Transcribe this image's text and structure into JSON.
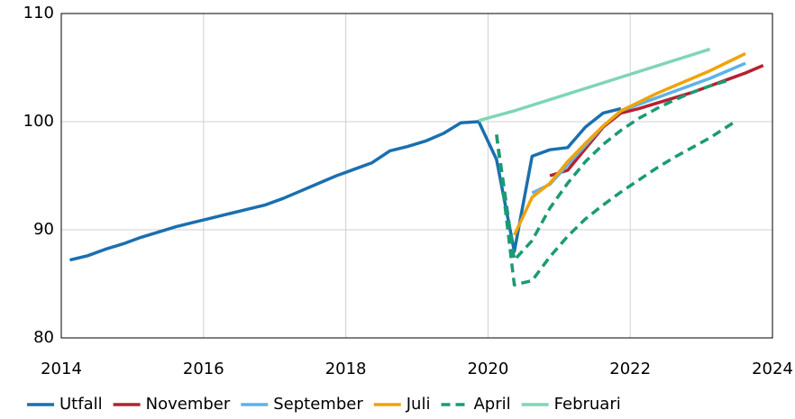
{
  "chart_data": {
    "type": "line",
    "xlim": [
      2014,
      2024
    ],
    "xticks": [
      2014,
      2016,
      2018,
      2020,
      2022,
      2024
    ],
    "ylim": [
      80,
      110
    ],
    "yticks": [
      80,
      90,
      100,
      110
    ],
    "grid": true,
    "legend": "bottom",
    "series": [
      {
        "name": "Utfall",
        "color": "#1a6faf",
        "x": [
          2014.12,
          2014.37,
          2014.62,
          2014.87,
          2015.12,
          2015.37,
          2015.62,
          2015.87,
          2016.12,
          2016.37,
          2016.62,
          2016.87,
          2017.12,
          2017.37,
          2017.62,
          2017.87,
          2018.12,
          2018.37,
          2018.62,
          2018.87,
          2019.12,
          2019.37,
          2019.62,
          2019.87,
          2020.12,
          2020.37,
          2020.62,
          2020.87,
          2021.12,
          2021.37,
          2021.62,
          2021.87
        ],
        "values": [
          87.2,
          87.6,
          88.2,
          88.7,
          89.3,
          89.8,
          90.3,
          90.7,
          91.1,
          91.5,
          91.9,
          92.3,
          92.9,
          93.6,
          94.3,
          95.0,
          95.6,
          96.2,
          97.3,
          97.7,
          98.2,
          98.9,
          99.9,
          100.0,
          96.5,
          88.0,
          96.8,
          97.4,
          97.6,
          99.5,
          100.8,
          101.2
        ]
      },
      {
        "name": "November",
        "color": "#b5212e",
        "x": [
          2020.87,
          2021.12,
          2021.37,
          2021.62,
          2021.87,
          2022.12,
          2022.37,
          2022.62,
          2022.87,
          2023.12,
          2023.37,
          2023.62,
          2023.87
        ],
        "values": [
          95.0,
          95.5,
          97.5,
          99.5,
          100.8,
          101.2,
          101.7,
          102.2,
          102.7,
          103.3,
          103.9,
          104.5,
          105.2
        ]
      },
      {
        "name": "September",
        "color": "#5cb3e8",
        "x": [
          2020.62,
          2020.87,
          2021.12,
          2021.37,
          2021.62,
          2021.87,
          2022.12,
          2022.37,
          2022.62,
          2022.87,
          2023.12,
          2023.37,
          2023.62
        ],
        "values": [
          93.4,
          94.2,
          96.0,
          97.8,
          99.6,
          101.0,
          101.6,
          102.2,
          102.8,
          103.4,
          104.0,
          104.7,
          105.4
        ]
      },
      {
        "name": "Juli",
        "color": "#f0a30a",
        "x": [
          2020.37,
          2020.62,
          2020.87,
          2021.12,
          2021.37,
          2021.62,
          2021.87,
          2022.12,
          2022.37,
          2022.62,
          2022.87,
          2023.12,
          2023.37,
          2023.62
        ],
        "values": [
          89.5,
          93.0,
          94.3,
          96.3,
          98.0,
          99.6,
          101.0,
          101.8,
          102.6,
          103.3,
          104.0,
          104.7,
          105.5,
          106.3
        ]
      },
      {
        "name": "April",
        "color": "#1b9a75",
        "dashed": true,
        "x": [
          2020.12,
          2020.37,
          2020.62,
          2020.87,
          2021.12,
          2021.37,
          2021.62,
          2021.87,
          2022.12,
          2022.37,
          2022.62,
          2022.87,
          2023.12,
          2023.37
        ],
        "values": [
          98.8,
          87.2,
          89.0,
          92.0,
          94.3,
          96.3,
          97.9,
          99.2,
          100.3,
          101.2,
          102.0,
          102.7,
          103.3,
          103.8
        ]
      },
      {
        "name": "April",
        "color": "#1b9a75",
        "dashed": true,
        "x": [
          2020.12,
          2020.37,
          2020.62,
          2020.87,
          2021.12,
          2021.37,
          2021.62,
          2021.87,
          2022.12,
          2022.37,
          2022.62,
          2022.87,
          2023.12,
          2023.45
        ],
        "values": [
          98.8,
          84.9,
          85.3,
          87.5,
          89.4,
          91.0,
          92.3,
          93.5,
          94.6,
          95.7,
          96.7,
          97.6,
          98.5,
          99.9
        ]
      },
      {
        "name": "Februari",
        "color": "#7fd6b4",
        "x": [
          2019.87,
          2020.37,
          2023.12
        ],
        "values": [
          100.1,
          101.0,
          106.7
        ]
      }
    ]
  }
}
